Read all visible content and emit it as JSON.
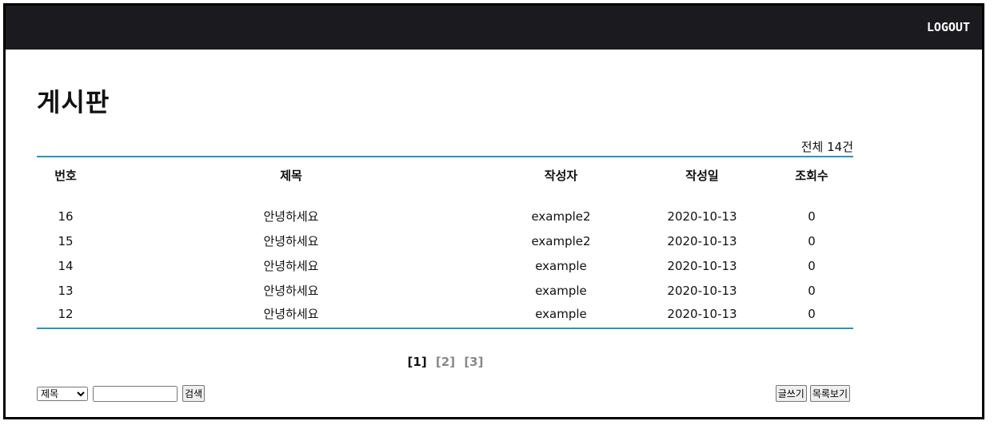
{
  "header": {
    "logout_label": "LOGOUT"
  },
  "page": {
    "title": "게시판",
    "total_label": "전체 14건"
  },
  "table": {
    "columns": [
      "번호",
      "제목",
      "작성자",
      "작성일",
      "조회수"
    ],
    "rows": [
      [
        "16",
        "안녕하세요",
        "example2",
        "2020-10-13",
        "0"
      ],
      [
        "15",
        "안녕하세요",
        "example2",
        "2020-10-13",
        "0"
      ],
      [
        "14",
        "안녕하세요",
        "example",
        "2020-10-13",
        "0"
      ],
      [
        "13",
        "안녕하세요",
        "example",
        "2020-10-13",
        "0"
      ],
      [
        "12",
        "안녕하세요",
        "example",
        "2020-10-13",
        "0"
      ]
    ]
  },
  "pagination": {
    "pages": [
      "[1]",
      "[2]",
      "[3]"
    ],
    "current": "[1]"
  },
  "search": {
    "field_selected": "제목",
    "query": "",
    "button_label": "검색"
  },
  "actions": {
    "write_label": "글쓰기",
    "list_label": "목록보기"
  },
  "colors": {
    "topbar": "#1a1a1f",
    "table_rule": "#2b92c0"
  }
}
